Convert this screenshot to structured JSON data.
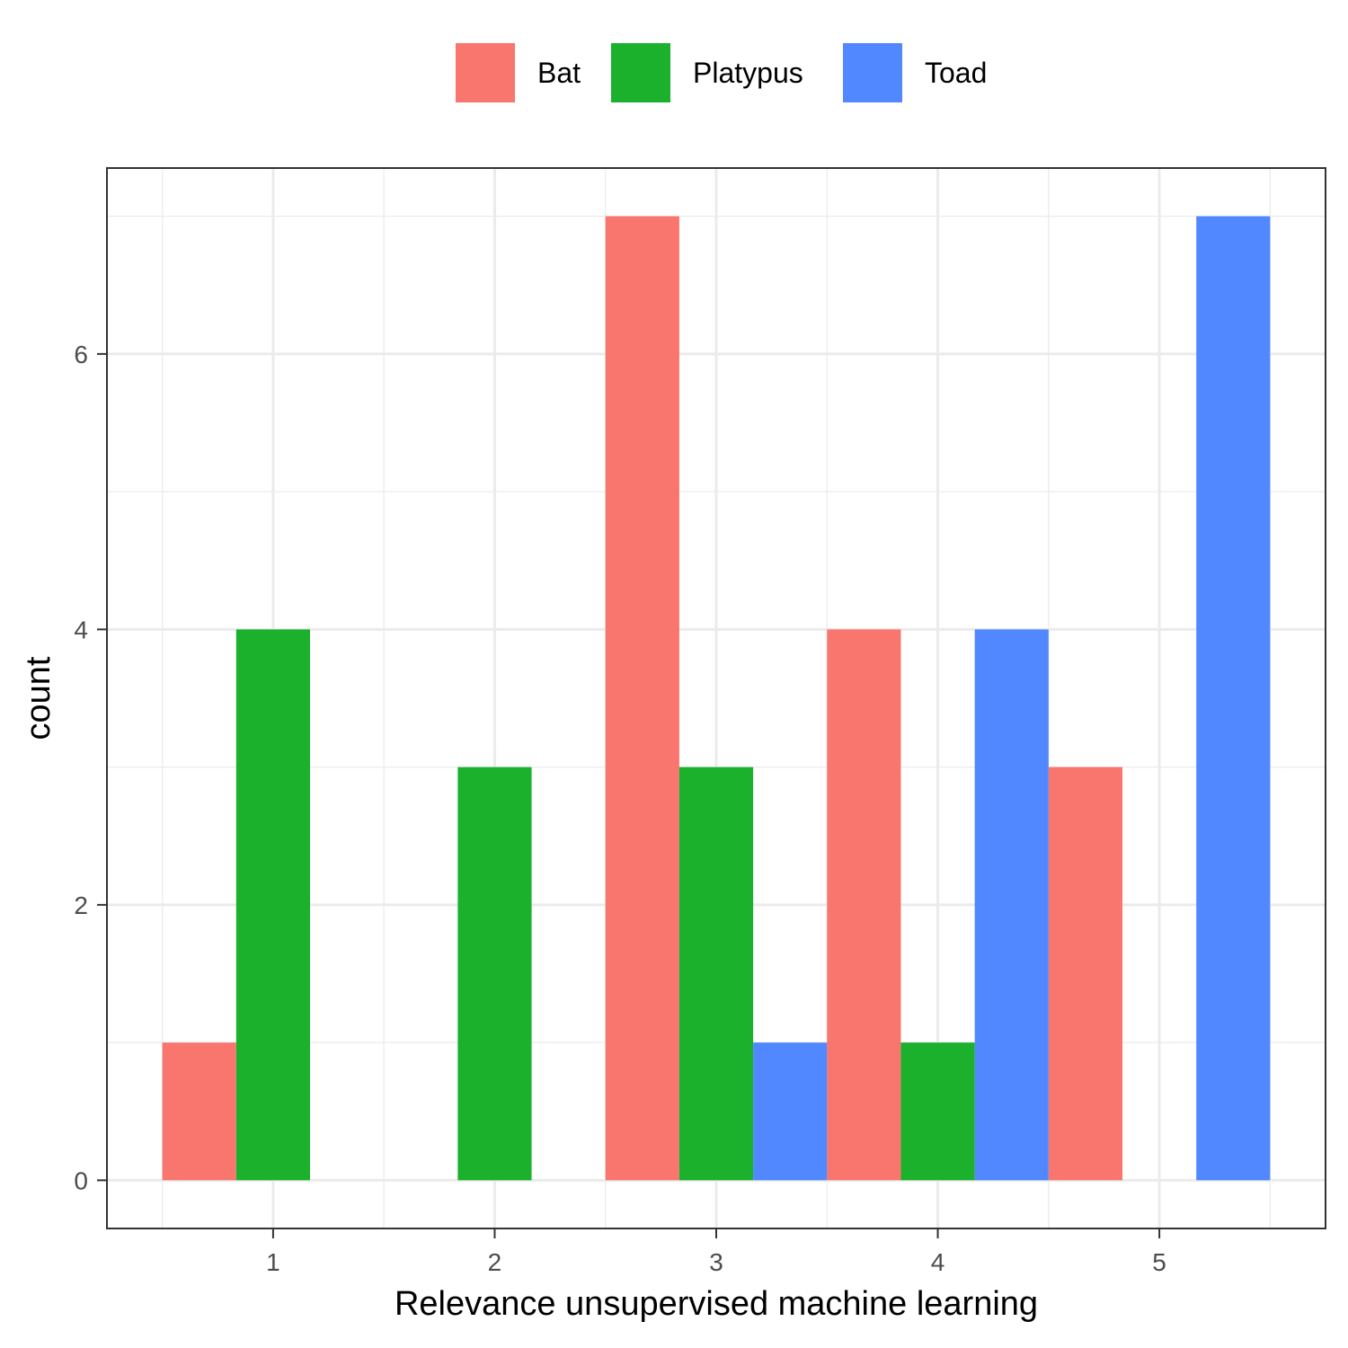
{
  "chart_data": {
    "type": "bar",
    "xlabel": "Relevance unsupervised machine learning",
    "ylabel": "count",
    "categories": [
      "1",
      "2",
      "3",
      "4",
      "5"
    ],
    "x_ticks": [
      1,
      2,
      3,
      4,
      5
    ],
    "y_ticks": [
      0,
      2,
      4,
      6
    ],
    "xlim": [
      0.25,
      5.75
    ],
    "ylim": [
      -0.35,
      7.35
    ],
    "bin_width": 1,
    "grid": true,
    "legend_position": "top",
    "series": [
      {
        "name": "Bat",
        "color": "#F8766D",
        "values": [
          1,
          0,
          7,
          4,
          3
        ]
      },
      {
        "name": "Platypus",
        "color": "#1BB12D",
        "values": [
          4,
          3,
          3,
          1,
          0
        ]
      },
      {
        "name": "Toad",
        "color": "#5188FF",
        "values": [
          0,
          0,
          1,
          4,
          7
        ]
      }
    ]
  }
}
